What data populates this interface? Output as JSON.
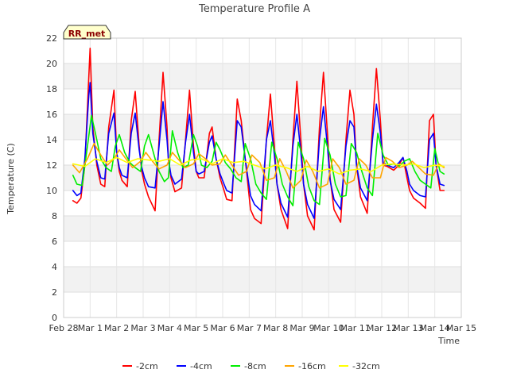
{
  "chart_data": {
    "type": "line",
    "title": "Temperature Profile A",
    "xlabel": "Time",
    "ylabel": "Temperature (C)",
    "badge": "RR_met",
    "ylim": [
      0,
      22
    ],
    "yticks": [
      0,
      2,
      4,
      6,
      8,
      10,
      12,
      14,
      16,
      18,
      20,
      22
    ],
    "xlim": [
      0,
      15
    ],
    "xticks": [
      {
        "value": 0,
        "label": "Feb 28"
      },
      {
        "value": 1,
        "label": "Mar 1"
      },
      {
        "value": 2,
        "label": "Mar 2"
      },
      {
        "value": 3,
        "label": "Mar 3"
      },
      {
        "value": 4,
        "label": "Mar 4"
      },
      {
        "value": 5,
        "label": "Mar 5"
      },
      {
        "value": 6,
        "label": "Mar 6"
      },
      {
        "value": 7,
        "label": "Mar 7"
      },
      {
        "value": 8,
        "label": "Mar 8"
      },
      {
        "value": 9,
        "label": "Mar 9"
      },
      {
        "value": 10,
        "label": "Mar 10"
      },
      {
        "value": 11,
        "label": "Mar 11"
      },
      {
        "value": 12,
        "label": "Mar 12"
      },
      {
        "value": 13,
        "label": "Mar 13"
      },
      {
        "value": 14,
        "label": "Mar 14"
      },
      {
        "value": 15,
        "label": "Mar 15"
      }
    ],
    "grid": true,
    "legend_position": "bottom",
    "series": [
      {
        "name": "-2cm",
        "color": "#ff0000",
        "x": [
          0.35,
          0.5,
          0.65,
          0.8,
          0.95,
          1.0,
          1.1,
          1.25,
          1.4,
          1.55,
          1.7,
          1.9,
          2.0,
          2.1,
          2.2,
          2.4,
          2.55,
          2.7,
          2.85,
          2.95,
          3.05,
          3.2,
          3.45,
          3.6,
          3.75,
          3.9,
          3.95,
          4.05,
          4.2,
          4.45,
          4.6,
          4.75,
          4.9,
          5.0,
          5.1,
          5.3,
          5.5,
          5.6,
          5.75,
          5.9,
          6.05,
          6.15,
          6.35,
          6.55,
          6.7,
          6.85,
          6.95,
          7.05,
          7.2,
          7.45,
          7.65,
          7.8,
          7.95,
          8.05,
          8.2,
          8.45,
          8.65,
          8.8,
          8.95,
          9.05,
          9.2,
          9.45,
          9.65,
          9.8,
          9.95,
          10.05,
          10.2,
          10.45,
          10.65,
          10.8,
          10.95,
          11.05,
          11.2,
          11.45,
          11.65,
          11.8,
          11.95,
          12.05,
          12.2,
          12.45,
          12.65,
          12.8,
          12.95,
          13.05,
          13.2,
          13.45,
          13.65,
          13.8,
          13.95,
          14.05,
          14.2,
          14.35
        ],
        "y": [
          9.2,
          9.0,
          9.4,
          12.0,
          19.0,
          21.2,
          15.0,
          12.0,
          10.5,
          10.3,
          15.0,
          17.9,
          13.0,
          11.5,
          10.8,
          10.3,
          15.5,
          17.8,
          13.5,
          11.5,
          10.5,
          9.5,
          8.4,
          14.0,
          19.3,
          15.0,
          12.5,
          11.0,
          9.9,
          10.2,
          14.0,
          17.9,
          13.5,
          11.5,
          11.0,
          11.0,
          14.5,
          15.0,
          12.5,
          11.0,
          10.0,
          9.3,
          9.2,
          17.2,
          15.5,
          12.5,
          10.5,
          8.5,
          7.8,
          7.4,
          14.0,
          17.6,
          13.5,
          10.5,
          8.5,
          7.0,
          14.0,
          18.6,
          14.0,
          10.5,
          8.0,
          6.9,
          15.0,
          19.3,
          14.5,
          11.0,
          8.5,
          7.5,
          14.0,
          17.9,
          16.0,
          12.0,
          9.5,
          8.2,
          15.0,
          19.6,
          15.5,
          12.0,
          11.9,
          11.6,
          12.0,
          12.6,
          11.0,
          10.0,
          9.4,
          9.0,
          8.6,
          15.5,
          16.0,
          12.0,
          10.0,
          10.0
        ]
      },
      {
        "name": "-4cm",
        "color": "#0000ff",
        "x": [
          0.35,
          0.5,
          0.65,
          0.8,
          0.95,
          1.0,
          1.1,
          1.25,
          1.4,
          1.55,
          1.7,
          1.9,
          2.0,
          2.1,
          2.2,
          2.4,
          2.55,
          2.7,
          2.85,
          2.95,
          3.05,
          3.2,
          3.45,
          3.6,
          3.75,
          3.9,
          3.95,
          4.05,
          4.2,
          4.45,
          4.6,
          4.75,
          4.9,
          5.0,
          5.1,
          5.3,
          5.5,
          5.6,
          5.75,
          5.9,
          6.05,
          6.15,
          6.35,
          6.55,
          6.7,
          6.85,
          6.95,
          7.05,
          7.2,
          7.45,
          7.65,
          7.8,
          7.95,
          8.05,
          8.2,
          8.45,
          8.65,
          8.8,
          8.95,
          9.05,
          9.2,
          9.45,
          9.65,
          9.8,
          9.95,
          10.05,
          10.2,
          10.45,
          10.65,
          10.8,
          10.95,
          11.05,
          11.2,
          11.45,
          11.65,
          11.8,
          11.95,
          12.05,
          12.2,
          12.45,
          12.65,
          12.8,
          12.95,
          13.05,
          13.2,
          13.45,
          13.65,
          13.8,
          13.95,
          14.05,
          14.2,
          14.35
        ],
        "y": [
          10.0,
          9.6,
          9.8,
          12.5,
          17.5,
          18.5,
          14.5,
          12.3,
          11.0,
          10.9,
          14.5,
          16.1,
          13.0,
          11.8,
          11.2,
          11.0,
          14.5,
          16.1,
          13.2,
          11.8,
          11.0,
          10.3,
          10.2,
          13.5,
          17.0,
          14.0,
          12.5,
          11.2,
          10.5,
          10.9,
          13.8,
          16.0,
          13.0,
          11.5,
          11.3,
          11.5,
          13.8,
          14.3,
          12.5,
          11.3,
          10.5,
          10.0,
          9.8,
          15.5,
          15.0,
          12.5,
          11.0,
          9.6,
          8.9,
          8.4,
          14.0,
          15.5,
          12.8,
          10.5,
          9.0,
          7.9,
          13.5,
          16.0,
          13.0,
          10.5,
          8.9,
          7.8,
          14.0,
          16.6,
          13.5,
          10.8,
          9.3,
          8.5,
          13.5,
          15.5,
          15.0,
          12.0,
          10.2,
          9.2,
          14.0,
          16.8,
          14.5,
          12.2,
          12.0,
          11.8,
          12.2,
          12.6,
          11.5,
          10.5,
          10.0,
          9.6,
          9.5,
          14.0,
          14.5,
          12.0,
          10.5,
          10.4
        ]
      },
      {
        "name": "-8cm",
        "color": "#00ee00",
        "x": [
          0.35,
          0.5,
          0.7,
          0.9,
          1.05,
          1.2,
          1.4,
          1.6,
          1.8,
          1.95,
          2.1,
          2.3,
          2.5,
          2.7,
          2.9,
          3.05,
          3.2,
          3.45,
          3.6,
          3.8,
          3.95,
          4.1,
          4.3,
          4.5,
          4.7,
          4.9,
          5.05,
          5.2,
          5.4,
          5.6,
          5.75,
          5.9,
          6.1,
          6.3,
          6.5,
          6.7,
          6.85,
          7.05,
          7.25,
          7.45,
          7.65,
          7.85,
          8.05,
          8.25,
          8.45,
          8.65,
          8.85,
          9.05,
          9.25,
          9.45,
          9.65,
          9.85,
          10.05,
          10.25,
          10.45,
          10.65,
          10.85,
          11.05,
          11.25,
          11.45,
          11.65,
          11.85,
          12.05,
          12.25,
          12.45,
          12.65,
          12.85,
          13.05,
          13.25,
          13.45,
          13.65,
          13.85,
          14.0,
          14.2,
          14.35
        ],
        "y": [
          11.2,
          10.5,
          10.4,
          13.5,
          15.9,
          14.5,
          12.5,
          11.8,
          11.5,
          13.5,
          14.4,
          13.0,
          12.2,
          11.8,
          11.5,
          13.5,
          14.4,
          12.5,
          11.5,
          10.7,
          11.0,
          14.7,
          13.0,
          11.8,
          12.0,
          14.4,
          13.5,
          12.0,
          11.8,
          12.3,
          13.8,
          13.2,
          12.2,
          11.7,
          11.0,
          10.7,
          13.7,
          12.5,
          10.5,
          9.8,
          9.3,
          13.8,
          12.5,
          10.5,
          9.5,
          8.8,
          13.8,
          12.5,
          10.3,
          9.2,
          8.9,
          14.1,
          12.8,
          10.5,
          9.5,
          9.6,
          13.7,
          13.0,
          11.5,
          10.2,
          9.6,
          14.5,
          12.8,
          12.0,
          12.1,
          11.9,
          12.3,
          12.5,
          11.5,
          10.8,
          10.5,
          10.2,
          13.3,
          11.5,
          11.3
        ]
      },
      {
        "name": "-16cm",
        "color": "#ffa500",
        "x": [
          0.35,
          0.6,
          0.9,
          1.15,
          1.4,
          1.65,
          1.9,
          2.1,
          2.35,
          2.6,
          2.9,
          3.1,
          3.35,
          3.6,
          3.9,
          4.1,
          4.35,
          4.6,
          4.9,
          5.1,
          5.35,
          5.6,
          5.9,
          6.1,
          6.35,
          6.6,
          6.9,
          7.1,
          7.4,
          7.65,
          7.95,
          8.15,
          8.4,
          8.65,
          8.95,
          9.15,
          9.4,
          9.65,
          9.95,
          10.15,
          10.4,
          10.65,
          10.95,
          11.15,
          11.4,
          11.65,
          11.95,
          12.15,
          12.4,
          12.65,
          12.95,
          13.15,
          13.4,
          13.65,
          13.95,
          14.15,
          14.35
        ],
        "y": [
          12.0,
          11.4,
          12.5,
          13.7,
          12.8,
          12.0,
          12.5,
          13.2,
          12.5,
          11.8,
          12.3,
          13.0,
          12.3,
          11.7,
          12.0,
          13.0,
          12.4,
          11.8,
          12.1,
          12.9,
          12.5,
          12.0,
          12.1,
          12.8,
          12.0,
          11.2,
          11.5,
          12.8,
          12.2,
          10.8,
          11.0,
          12.5,
          11.5,
          10.2,
          10.8,
          12.4,
          11.5,
          10.2,
          10.5,
          12.5,
          11.8,
          10.5,
          10.8,
          12.5,
          12.0,
          11.0,
          11.0,
          12.6,
          12.3,
          11.8,
          12.0,
          12.3,
          11.8,
          11.3,
          11.2,
          12.1,
          11.8
        ]
      },
      {
        "name": "-32cm",
        "color": "#ffff00",
        "x": [
          0.35,
          0.8,
          1.2,
          1.6,
          2.0,
          2.4,
          2.8,
          3.2,
          3.6,
          4.0,
          4.4,
          4.8,
          5.2,
          5.6,
          6.0,
          6.4,
          6.8,
          7.2,
          7.6,
          8.0,
          8.4,
          8.8,
          9.2,
          9.6,
          10.0,
          10.4,
          10.8,
          11.2,
          11.6,
          12.0,
          12.4,
          12.8,
          13.2,
          13.6,
          14.0,
          14.35
        ],
        "y": [
          12.1,
          11.9,
          12.5,
          12.2,
          12.6,
          12.2,
          12.5,
          12.4,
          12.3,
          12.5,
          12.0,
          12.4,
          12.5,
          12.1,
          12.5,
          12.2,
          12.3,
          12.0,
          11.7,
          12.0,
          11.8,
          11.5,
          11.9,
          11.5,
          11.7,
          11.3,
          11.6,
          11.7,
          11.5,
          12.0,
          12.1,
          12.0,
          12.1,
          11.8,
          12.0,
          11.9
        ]
      }
    ]
  }
}
